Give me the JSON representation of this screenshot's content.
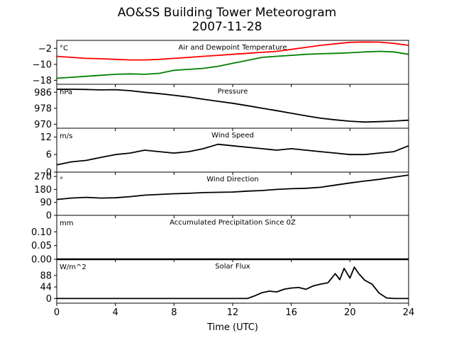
{
  "figure": {
    "title": "AO&SS Building Tower Meteorogram",
    "subtitle": "2007-11-28",
    "xlabel": "Time (UTC)"
  },
  "chart_data": {
    "type": "line",
    "x_unit_label": "Time (UTC)",
    "xlim": [
      0,
      24
    ],
    "xticks": [
      0,
      4,
      8,
      12,
      16,
      20,
      24
    ],
    "panels": [
      {
        "id": "temp",
        "title": "Air and Dewpoint Temperature",
        "unit": "°C",
        "ylim": [
          -20,
          2
        ],
        "yticks": [
          -2,
          -10,
          -18
        ],
        "series": [
          {
            "name": "Air Temperature",
            "color": "#ff0000",
            "x": [
              0,
              1,
              2,
              3,
              4,
              5,
              6,
              7,
              8,
              9,
              10,
              11,
              12,
              13,
              14,
              15,
              16,
              17,
              18,
              19,
              20,
              21,
              22,
              23,
              24
            ],
            "y": [
              -6,
              -6.5,
              -7,
              -7.2,
              -7.5,
              -7.8,
              -7.8,
              -7.5,
              -7,
              -6.5,
              -6,
              -5.5,
              -5,
              -4.5,
              -4,
              -3.5,
              -2.5,
              -1.5,
              -0.5,
              0.3,
              1,
              1.2,
              1.1,
              0.5,
              -0.5
            ]
          },
          {
            "name": "Dewpoint Temperature",
            "color": "#008000",
            "x": [
              0,
              1,
              2,
              3,
              4,
              5,
              6,
              7,
              8,
              9,
              10,
              11,
              12,
              13,
              14,
              15,
              16,
              17,
              18,
              19,
              20,
              21,
              22,
              23,
              24
            ],
            "y": [
              -17,
              -16.5,
              -16,
              -15.5,
              -15,
              -14.8,
              -15,
              -14.5,
              -13,
              -12.5,
              -12,
              -11,
              -9.5,
              -8,
              -6.5,
              -6,
              -5.5,
              -5,
              -4.7,
              -4.5,
              -4.2,
              -3.8,
              -3.5,
              -3.8,
              -5
            ]
          }
        ]
      },
      {
        "id": "pressure",
        "title": "Pressure",
        "unit": "hPa",
        "ylim": [
          968,
          990
        ],
        "yticks": [
          986,
          978,
          970
        ],
        "series": [
          {
            "name": "Pressure",
            "color": "#000000",
            "x": [
              0,
              1,
              2,
              3,
              4,
              5,
              6,
              7,
              8,
              9,
              10,
              11,
              12,
              13,
              14,
              15,
              16,
              17,
              18,
              19,
              20,
              21,
              22,
              23,
              24
            ],
            "y": [
              987.5,
              987.5,
              987.4,
              987.2,
              987.3,
              986.8,
              986,
              985.3,
              984.5,
              983.6,
              982.5,
              981.5,
              980.5,
              979.3,
              978,
              976.8,
              975.5,
              974.2,
              973,
              972.2,
              971.5,
              971.1,
              971.3,
              971.6,
              972
            ]
          }
        ]
      },
      {
        "id": "wind_speed",
        "title": "Wind Speed",
        "unit": "m/s",
        "ylim": [
          0,
          15
        ],
        "yticks": [
          12,
          6,
          0
        ],
        "series": [
          {
            "name": "Wind Speed",
            "color": "#000000",
            "x": [
              0,
              1,
              2,
              3,
              4,
              5,
              6,
              7,
              8,
              9,
              10,
              11,
              12,
              13,
              14,
              15,
              16,
              17,
              18,
              19,
              20,
              21,
              22,
              23,
              24
            ],
            "y": [
              2.5,
              3.5,
              4,
              5,
              6,
              6.5,
              7.5,
              7,
              6.5,
              7,
              8,
              9.5,
              9,
              8.5,
              8,
              7.5,
              8,
              7.5,
              7,
              6.5,
              6,
              6,
              6.5,
              7,
              9
            ]
          }
        ]
      },
      {
        "id": "wind_dir",
        "title": "Wind Direction",
        "unit": "°",
        "ylim": [
          0,
          300
        ],
        "yticks": [
          270,
          180,
          90,
          0
        ],
        "series": [
          {
            "name": "Wind Direction",
            "color": "#000000",
            "x": [
              0,
              1,
              2,
              3,
              4,
              5,
              6,
              7,
              8,
              9,
              10,
              11,
              12,
              13,
              14,
              15,
              16,
              17,
              18,
              19,
              20,
              21,
              22,
              23,
              24
            ],
            "y": [
              110,
              120,
              125,
              120,
              122,
              130,
              140,
              145,
              150,
              153,
              158,
              160,
              162,
              168,
              172,
              180,
              185,
              188,
              195,
              210,
              225,
              238,
              250,
              265,
              280
            ]
          }
        ]
      },
      {
        "id": "precip",
        "title": "Accumulated Precipitation Since 0Z",
        "unit": "mm",
        "ylim": [
          0,
          0.16
        ],
        "yticks": [
          0.1,
          0.05,
          0.0
        ],
        "series": [
          {
            "name": "Accumulated Precipitation",
            "color": "#000000",
            "x": [
              0,
              24
            ],
            "y": [
              0,
              0
            ]
          }
        ]
      },
      {
        "id": "solar",
        "title": "Solar Flux",
        "unit": "W/m^2",
        "ylim": [
          -18,
          150
        ],
        "yticks": [
          88,
          44,
          0
        ],
        "series": [
          {
            "name": "Solar Flux",
            "color": "#000000",
            "x": [
              0,
              2,
              4,
              6,
              8,
              10,
              12,
              13,
              13.5,
              14,
              14.5,
              15,
              15.5,
              16,
              16.5,
              17,
              17.5,
              18,
              18.5,
              19,
              19.3,
              19.6,
              20,
              20.3,
              20.6,
              21,
              21.5,
              22,
              22.5,
              23,
              24
            ],
            "y": [
              0,
              0,
              0,
              0,
              0,
              0,
              0,
              0,
              10,
              22,
              28,
              25,
              35,
              40,
              42,
              35,
              48,
              55,
              60,
              95,
              72,
              115,
              78,
              120,
              95,
              70,
              55,
              20,
              2,
              0,
              0
            ]
          }
        ]
      }
    ]
  }
}
